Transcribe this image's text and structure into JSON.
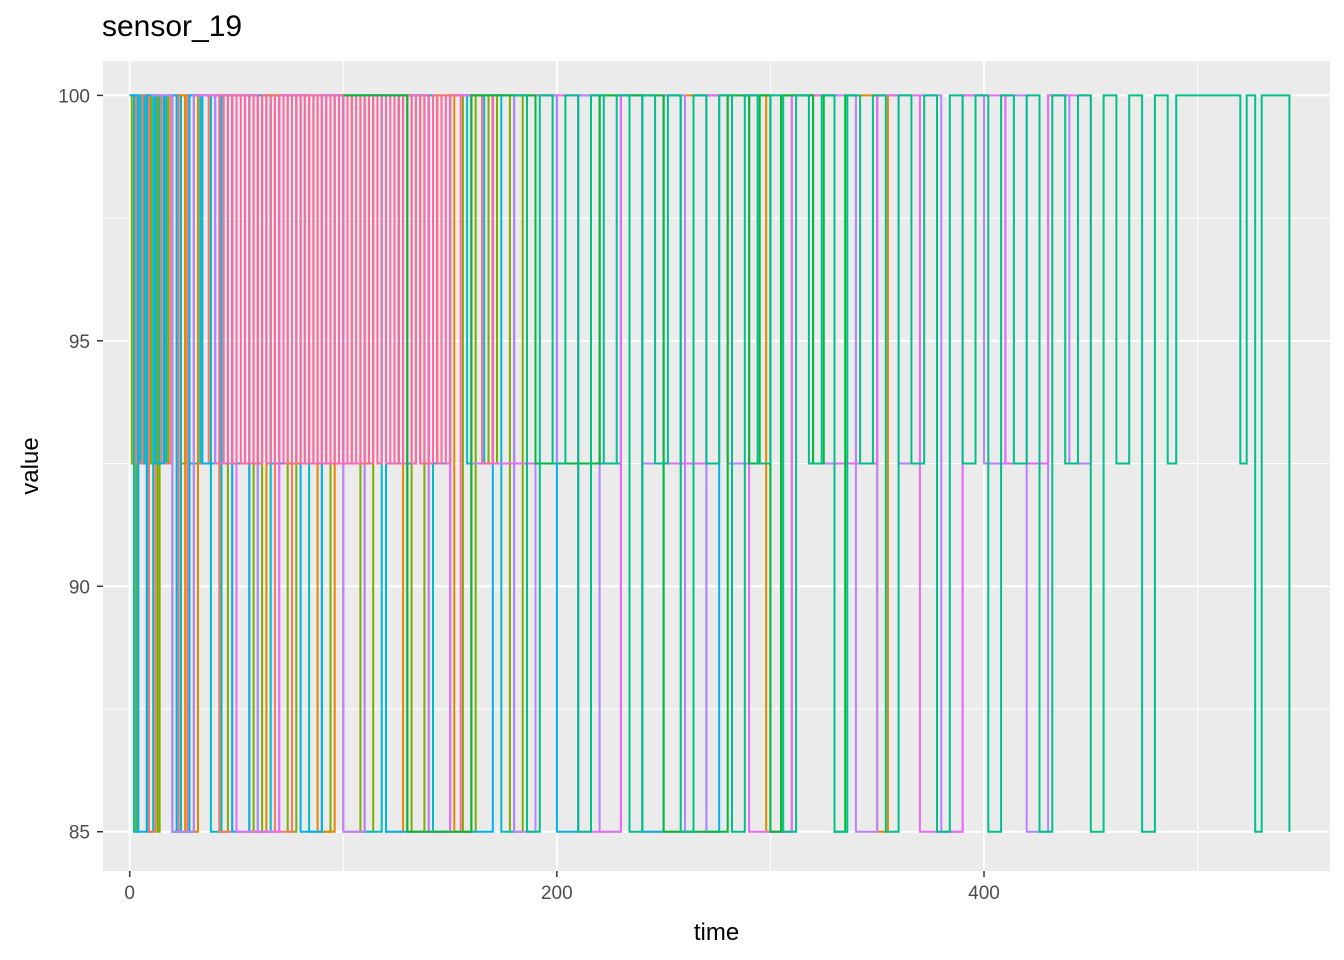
{
  "chart_data": {
    "type": "line",
    "title": "sensor_19",
    "xlabel": "time",
    "ylabel": "value",
    "xlim": [
      -12.5,
      562
    ],
    "ylim": [
      84.2,
      100.7
    ],
    "x_ticks": [
      0,
      200,
      400
    ],
    "y_ticks": [
      85,
      90,
      95,
      100
    ],
    "x_minor_grid": [
      100,
      300,
      500
    ],
    "y_minor_grid": [
      87.5,
      92.5,
      97.5
    ],
    "panel_background": "#ebebeb",
    "grid": true,
    "legend": "none",
    "series": [
      {
        "color": "#7CAE00",
        "x": [
          0,
          1,
          2,
          3,
          4,
          6,
          7,
          8,
          9,
          10,
          12,
          13,
          14,
          16,
          18,
          20,
          22,
          24,
          26,
          28,
          30,
          34,
          38,
          42,
          46,
          50,
          54,
          58,
          62,
          66,
          70,
          74,
          78,
          82,
          86,
          90,
          94,
          98,
          102,
          108,
          114,
          120,
          126,
          132,
          138,
          144,
          150,
          156,
          162,
          168,
          172,
          178,
          184,
          188
        ],
        "values": [
          100,
          92.5,
          100,
          85,
          100,
          92.5,
          100,
          85,
          100,
          92.5,
          100,
          85,
          100,
          92.5,
          100,
          85,
          100,
          92.5,
          100,
          85,
          100,
          92.5,
          100,
          85,
          100,
          92.5,
          100,
          85,
          100,
          92.5,
          100,
          85,
          100,
          92.5,
          100,
          85,
          100,
          92.5,
          100,
          85,
          100,
          92.5,
          100,
          85,
          100,
          92.5,
          100,
          85,
          100,
          92.5,
          100,
          85,
          100,
          100
        ]
      },
      {
        "color": "#00BFC4",
        "x": [
          0,
          2,
          4,
          5,
          7,
          9,
          11,
          14,
          17,
          20,
          24,
          28,
          33,
          38,
          43,
          48,
          54,
          60,
          66,
          72,
          78,
          84,
          90,
          96,
          102,
          110,
          118,
          126,
          134,
          142,
          150,
          158,
          166,
          174,
          180,
          186
        ],
        "values": [
          100,
          85,
          100,
          92.5,
          100,
          85,
          100,
          92.5,
          100,
          85,
          100,
          92.5,
          100,
          85,
          100,
          92.5,
          100,
          85,
          100,
          92.5,
          100,
          85,
          100,
          92.5,
          100,
          85,
          100,
          92.5,
          100,
          85,
          100,
          92.5,
          100,
          85,
          100,
          100
        ]
      },
      {
        "color": "#F8766D",
        "x": [
          0,
          3,
          6,
          9,
          12,
          15,
          19,
          23,
          27,
          32,
          37,
          42,
          48,
          54,
          60,
          68,
          76,
          84,
          92,
          100,
          110,
          120,
          130,
          140,
          150,
          160,
          170,
          180
        ],
        "values": [
          100,
          92.5,
          100,
          85,
          100,
          92.5,
          100,
          85,
          100,
          92.5,
          100,
          85,
          100,
          92.5,
          100,
          85,
          100,
          92.5,
          100,
          85,
          100,
          92.5,
          100,
          85,
          100,
          92.5,
          100,
          100
        ]
      },
      {
        "color": "#E58700",
        "x": [
          20,
          26,
          32,
          40,
          48,
          56,
          64,
          72,
          80,
          88,
          96,
          104,
          112,
          120,
          128,
          136,
          144,
          152,
          160,
          170,
          180,
          200,
          220,
          240,
          260,
          280,
          290,
          298,
          305,
          330,
          340,
          350,
          355,
          360
        ],
        "values": [
          100,
          85,
          100,
          92.5,
          100,
          85,
          100,
          92.5,
          100,
          85,
          100,
          92.5,
          100,
          85,
          100,
          92.5,
          100,
          85,
          100,
          92.5,
          100,
          92.5,
          100,
          85,
          100,
          92.5,
          100,
          85,
          100,
          92.5,
          100,
          85,
          100,
          100
        ]
      },
      {
        "color": "#00B0F6",
        "x": [
          0,
          4,
          8,
          12,
          16,
          22,
          28,
          34,
          40,
          48,
          56,
          64,
          72,
          80,
          90,
          100,
          110,
          120,
          130,
          140,
          150,
          160,
          170,
          180,
          190,
          200,
          210,
          220,
          230,
          240,
          250,
          258,
          264,
          270,
          276,
          282,
          290,
          300
        ],
        "values": [
          100,
          85,
          100,
          92.5,
          100,
          85,
          100,
          92.5,
          100,
          85,
          100,
          92.5,
          100,
          85,
          100,
          92.5,
          100,
          85,
          100,
          92.5,
          100,
          85,
          100,
          92.5,
          100,
          85,
          100,
          92.5,
          100,
          85,
          100,
          92.5,
          100,
          85,
          100,
          92.5,
          100,
          100
        ]
      },
      {
        "color": "#B983FF",
        "x": [
          10,
          20,
          30,
          40,
          50,
          60,
          70,
          80,
          90,
          100,
          110,
          120,
          130,
          140,
          150,
          160,
          170,
          180,
          190,
          200,
          210,
          220,
          230,
          240,
          250,
          260,
          270,
          280,
          290,
          300,
          310,
          320,
          330,
          340,
          350,
          360,
          370,
          380,
          390,
          400,
          410,
          420,
          430,
          440,
          450
        ],
        "values": [
          100,
          85,
          100,
          92.5,
          100,
          85,
          100,
          92.5,
          100,
          85,
          100,
          92.5,
          100,
          85,
          100,
          92.5,
          100,
          85,
          100,
          92.5,
          100,
          85,
          100,
          92.5,
          100,
          85,
          100,
          92.5,
          100,
          85,
          100,
          92.5,
          100,
          85,
          100,
          92.5,
          100,
          85,
          100,
          92.5,
          100,
          85,
          100,
          92.5,
          100
        ]
      },
      {
        "color": "#E76BF3",
        "x": [
          30,
          50,
          70,
          90,
          110,
          130,
          150,
          170,
          190,
          210,
          230,
          250,
          270,
          290,
          310,
          330,
          350,
          370,
          390,
          410,
          430,
          450
        ],
        "values": [
          100,
          85,
          100,
          92.5,
          100,
          85,
          100,
          92.5,
          100,
          85,
          100,
          92.5,
          100,
          85,
          100,
          92.5,
          100,
          85,
          100,
          92.5,
          100,
          100
        ]
      },
      {
        "color": "#FF67A4",
        "x": [
          40,
          42,
          44,
          46,
          48,
          50,
          52,
          54,
          56,
          58,
          60,
          62,
          64,
          66,
          68,
          70,
          72,
          74,
          76,
          78,
          80,
          82,
          84,
          86,
          88,
          90,
          92,
          94,
          96,
          98,
          100,
          102,
          104,
          106,
          108,
          110,
          112,
          114,
          116,
          118,
          120,
          122,
          124,
          126,
          128,
          130,
          132,
          134,
          136,
          138,
          140,
          142,
          144,
          146,
          148,
          150,
          155,
          160,
          165,
          170,
          175
        ],
        "values": [
          92.5,
          100,
          92.5,
          100,
          92.5,
          100,
          92.5,
          100,
          92.5,
          100,
          92.5,
          100,
          92.5,
          100,
          92.5,
          100,
          92.5,
          100,
          92.5,
          100,
          92.5,
          100,
          92.5,
          100,
          92.5,
          100,
          92.5,
          100,
          92.5,
          100,
          92.5,
          100,
          92.5,
          100,
          92.5,
          100,
          92.5,
          100,
          92.5,
          100,
          92.5,
          100,
          92.5,
          100,
          92.5,
          100,
          92.5,
          100,
          92.5,
          100,
          92.5,
          100,
          92.5,
          100,
          92.5,
          100,
          85,
          100,
          92.5,
          100,
          100
        ]
      },
      {
        "color": "#00BA38",
        "x": [
          100,
          130,
          160,
          190,
          220,
          250,
          280,
          290,
          295,
          300,
          305,
          320,
          325,
          330,
          335,
          340
        ],
        "values": [
          100,
          85,
          100,
          92.5,
          100,
          85,
          100,
          92.5,
          100,
          85,
          100,
          92.5,
          100,
          85,
          100,
          100
        ]
      },
      {
        "color": "#00C08B",
        "x": [
          180,
          186,
          192,
          198,
          204,
          210,
          216,
          222,
          228,
          234,
          240,
          246,
          252,
          258,
          264,
          270,
          276,
          282,
          288,
          294,
          300,
          306,
          312,
          318,
          324,
          330,
          336,
          342,
          348,
          354,
          360,
          366,
          372,
          378,
          384,
          390,
          396,
          402,
          408,
          414,
          420,
          426,
          432,
          438,
          444,
          450,
          456,
          462,
          468,
          474,
          480,
          486,
          490,
          493,
          520,
          523,
          527,
          530,
          540,
          543
        ],
        "values": [
          100,
          85,
          100,
          92.5,
          100,
          85,
          100,
          92.5,
          100,
          85,
          100,
          92.5,
          100,
          85,
          100,
          92.5,
          100,
          85,
          100,
          92.5,
          100,
          85,
          100,
          92.5,
          100,
          85,
          100,
          92.5,
          100,
          85,
          100,
          92.5,
          100,
          85,
          100,
          92.5,
          100,
          85,
          100,
          92.5,
          100,
          85,
          100,
          92.5,
          100,
          85,
          100,
          92.5,
          100,
          85,
          100,
          92.5,
          100,
          100,
          92.5,
          100,
          85,
          100,
          100,
          85
        ]
      }
    ]
  }
}
